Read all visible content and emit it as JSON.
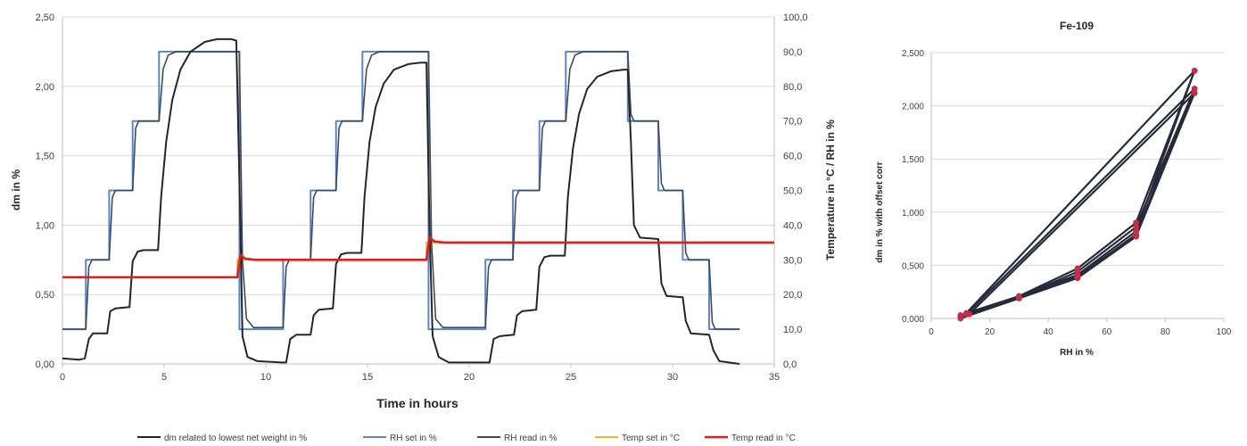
{
  "chart_data": [
    {
      "type": "line",
      "xlabel": "Time in hours",
      "ylabel": "dm in %",
      "y2label": "Temperature in °C / RH in %",
      "xlim": [
        0,
        35
      ],
      "ylim": [
        0,
        2.5
      ],
      "y2lim": [
        0,
        100
      ],
      "xticks": [
        "0",
        "5",
        "10",
        "15",
        "20",
        "25",
        "30",
        "35"
      ],
      "yticks": [
        "0,00",
        "0,50",
        "1,00",
        "1,50",
        "2,00",
        "2,50"
      ],
      "y2ticks": [
        "0,0",
        "10,0",
        "20,0",
        "30,0",
        "40,0",
        "50,0",
        "60,0",
        "70,0",
        "80,0",
        "90,0",
        "100,0"
      ],
      "grid": "horizontal",
      "legend_position": "bottom",
      "series": [
        {
          "name": "dm  related to lowest net weight in   %",
          "axis": "left",
          "color": "#262626",
          "points": [
            [
              0,
              0.04
            ],
            [
              0.8,
              0.03
            ],
            [
              1.1,
              0.04
            ],
            [
              1.3,
              0.18
            ],
            [
              1.5,
              0.22
            ],
            [
              2.2,
              0.22
            ],
            [
              2.35,
              0.38
            ],
            [
              2.6,
              0.4
            ],
            [
              3.3,
              0.41
            ],
            [
              3.45,
              0.74
            ],
            [
              3.7,
              0.81
            ],
            [
              4.0,
              0.82
            ],
            [
              4.7,
              0.82
            ],
            [
              4.85,
              1.2
            ],
            [
              5.1,
              1.6
            ],
            [
              5.4,
              1.9
            ],
            [
              5.8,
              2.12
            ],
            [
              6.3,
              2.25
            ],
            [
              7.0,
              2.32
            ],
            [
              7.6,
              2.34
            ],
            [
              8.3,
              2.34
            ],
            [
              8.55,
              2.33
            ],
            [
              8.75,
              1.0
            ],
            [
              8.85,
              0.2
            ],
            [
              9.1,
              0.05
            ],
            [
              9.6,
              0.02
            ],
            [
              10.8,
              0.01
            ],
            [
              11.0,
              0.01
            ],
            [
              11.2,
              0.18
            ],
            [
              11.5,
              0.21
            ],
            [
              12.2,
              0.21
            ],
            [
              12.35,
              0.35
            ],
            [
              12.6,
              0.39
            ],
            [
              13.3,
              0.4
            ],
            [
              13.45,
              0.72
            ],
            [
              13.7,
              0.79
            ],
            [
              14.0,
              0.8
            ],
            [
              14.7,
              0.8
            ],
            [
              14.85,
              1.2
            ],
            [
              15.1,
              1.6
            ],
            [
              15.4,
              1.85
            ],
            [
              15.8,
              2.02
            ],
            [
              16.3,
              2.12
            ],
            [
              17.0,
              2.16
            ],
            [
              17.6,
              2.17
            ],
            [
              17.9,
              2.17
            ],
            [
              18.05,
              1.0
            ],
            [
              18.2,
              0.2
            ],
            [
              18.5,
              0.05
            ],
            [
              19.0,
              0.01
            ],
            [
              20.8,
              0.01
            ],
            [
              21.0,
              0.01
            ],
            [
              21.2,
              0.18
            ],
            [
              21.5,
              0.2
            ],
            [
              22.2,
              0.21
            ],
            [
              22.35,
              0.35
            ],
            [
              22.6,
              0.38
            ],
            [
              23.3,
              0.39
            ],
            [
              23.45,
              0.7
            ],
            [
              23.7,
              0.77
            ],
            [
              24.0,
              0.78
            ],
            [
              24.7,
              0.78
            ],
            [
              24.85,
              1.2
            ],
            [
              25.1,
              1.55
            ],
            [
              25.4,
              1.8
            ],
            [
              25.8,
              1.98
            ],
            [
              26.3,
              2.07
            ],
            [
              27.0,
              2.11
            ],
            [
              27.6,
              2.12
            ],
            [
              27.8,
              2.12
            ],
            [
              27.95,
              1.6
            ],
            [
              28.1,
              1.0
            ],
            [
              28.4,
              0.91
            ],
            [
              29.3,
              0.9
            ],
            [
              29.45,
              0.58
            ],
            [
              29.7,
              0.49
            ],
            [
              30.5,
              0.48
            ],
            [
              30.65,
              0.31
            ],
            [
              30.9,
              0.22
            ],
            [
              31.8,
              0.21
            ],
            [
              32.0,
              0.1
            ],
            [
              32.3,
              0.02
            ],
            [
              33.3,
              0.0
            ]
          ]
        },
        {
          "name": "RH set in %",
          "axis": "right",
          "color": "#5b87c4",
          "points": [
            [
              0,
              10
            ],
            [
              1.15,
              10
            ],
            [
              1.15,
              30
            ],
            [
              2.3,
              30
            ],
            [
              2.3,
              50
            ],
            [
              3.45,
              50
            ],
            [
              3.45,
              70
            ],
            [
              4.75,
              70
            ],
            [
              4.75,
              90
            ],
            [
              8.7,
              90
            ],
            [
              8.7,
              10
            ],
            [
              10.85,
              10
            ],
            [
              10.85,
              30
            ],
            [
              12.2,
              30
            ],
            [
              12.2,
              50
            ],
            [
              13.45,
              50
            ],
            [
              13.45,
              70
            ],
            [
              14.75,
              70
            ],
            [
              14.75,
              90
            ],
            [
              18.0,
              90
            ],
            [
              18.0,
              10
            ],
            [
              20.8,
              10
            ],
            [
              20.8,
              30
            ],
            [
              22.15,
              30
            ],
            [
              22.15,
              50
            ],
            [
              23.45,
              50
            ],
            [
              23.45,
              70
            ],
            [
              24.75,
              70
            ],
            [
              24.75,
              90
            ],
            [
              27.8,
              90
            ],
            [
              27.8,
              70
            ],
            [
              29.3,
              70
            ],
            [
              29.3,
              50
            ],
            [
              30.5,
              50
            ],
            [
              30.5,
              30
            ],
            [
              31.8,
              30
            ],
            [
              31.8,
              10
            ],
            [
              33.3,
              10
            ]
          ]
        },
        {
          "name": "RH read in %",
          "axis": "right",
          "color": "#404a5a",
          "points": [
            [
              0,
              10
            ],
            [
              1.15,
              10
            ],
            [
              1.3,
              28
            ],
            [
              1.45,
              30
            ],
            [
              2.3,
              30
            ],
            [
              2.45,
              48
            ],
            [
              2.6,
              50
            ],
            [
              3.45,
              50
            ],
            [
              3.6,
              68
            ],
            [
              3.75,
              70
            ],
            [
              4.75,
              70
            ],
            [
              4.95,
              85
            ],
            [
              5.2,
              89
            ],
            [
              5.6,
              90
            ],
            [
              8.7,
              90
            ],
            [
              8.85,
              30
            ],
            [
              9.05,
              13
            ],
            [
              9.4,
              10.5
            ],
            [
              10.85,
              10.5
            ],
            [
              11.0,
              28
            ],
            [
              11.15,
              30
            ],
            [
              12.2,
              30
            ],
            [
              12.35,
              48
            ],
            [
              12.5,
              50
            ],
            [
              13.45,
              50
            ],
            [
              13.6,
              68
            ],
            [
              13.75,
              70
            ],
            [
              14.75,
              70
            ],
            [
              14.95,
              85
            ],
            [
              15.2,
              89
            ],
            [
              15.6,
              90
            ],
            [
              18.0,
              90
            ],
            [
              18.15,
              35
            ],
            [
              18.35,
              13
            ],
            [
              18.7,
              10.5
            ],
            [
              20.8,
              10.5
            ],
            [
              20.95,
              28
            ],
            [
              21.1,
              30
            ],
            [
              22.15,
              30
            ],
            [
              22.3,
              48
            ],
            [
              22.45,
              50
            ],
            [
              23.45,
              50
            ],
            [
              23.6,
              68
            ],
            [
              23.75,
              70
            ],
            [
              24.75,
              70
            ],
            [
              24.95,
              85
            ],
            [
              25.2,
              89
            ],
            [
              25.6,
              90
            ],
            [
              27.8,
              90
            ],
            [
              27.95,
              72
            ],
            [
              28.1,
              70
            ],
            [
              29.3,
              70
            ],
            [
              29.45,
              52
            ],
            [
              29.6,
              50
            ],
            [
              30.5,
              50
            ],
            [
              30.65,
              32
            ],
            [
              30.8,
              30
            ],
            [
              31.8,
              30
            ],
            [
              31.95,
              12
            ],
            [
              32.1,
              10
            ],
            [
              33.3,
              10
            ]
          ]
        },
        {
          "name": "Temp set in °C",
          "axis": "right",
          "color": "#f2b52a",
          "points": [
            [
              0,
              25
            ],
            [
              8.6,
              25
            ],
            [
              8.6,
              30
            ],
            [
              17.9,
              30
            ],
            [
              17.9,
              35
            ],
            [
              35,
              35
            ]
          ]
        },
        {
          "name": "Temp read in °C",
          "axis": "right",
          "color": "#e02020",
          "points": [
            [
              0,
              25
            ],
            [
              8.6,
              25
            ],
            [
              8.75,
              31.5
            ],
            [
              9.0,
              30.3
            ],
            [
              9.5,
              30
            ],
            [
              17.9,
              30
            ],
            [
              18.05,
              36.5
            ],
            [
              18.3,
              35.3
            ],
            [
              18.8,
              35
            ],
            [
              35,
              35
            ]
          ]
        }
      ]
    },
    {
      "type": "scatter",
      "title": "Fe-109",
      "xlabel": "RH in %",
      "ylabel": "dm in % with offset corr",
      "xlim": [
        0,
        100
      ],
      "ylim": [
        0,
        2.5
      ],
      "xticks": [
        "0",
        "20",
        "40",
        "60",
        "80",
        "100"
      ],
      "yticks": [
        "0,000",
        "0,500",
        "1,000",
        "1,500",
        "2,000",
        "2,500"
      ],
      "grid": "horizontal",
      "line_color": "#262a3a",
      "marker_color": "#c0304a",
      "loops": [
        [
          [
            10,
            0.03
          ],
          [
            30,
            0.21
          ],
          [
            50,
            0.41
          ],
          [
            70,
            0.82
          ],
          [
            90,
            2.33
          ],
          [
            70,
            0.9
          ],
          [
            50,
            0.47
          ],
          [
            30,
            0.21
          ],
          [
            12,
            0.05
          ],
          [
            90,
            2.33
          ]
        ],
        [
          [
            10,
            0.01
          ],
          [
            30,
            0.19
          ],
          [
            50,
            0.39
          ],
          [
            70,
            0.79
          ],
          [
            90,
            2.16
          ],
          [
            70,
            0.86
          ],
          [
            50,
            0.44
          ],
          [
            30,
            0.2
          ],
          [
            12,
            0.04
          ],
          [
            90,
            2.16
          ]
        ],
        [
          [
            10,
            0.0
          ],
          [
            30,
            0.19
          ],
          [
            50,
            0.38
          ],
          [
            70,
            0.77
          ],
          [
            90,
            2.12
          ],
          [
            70,
            0.78
          ],
          [
            50,
            0.4
          ],
          [
            30,
            0.2
          ],
          [
            13,
            0.04
          ],
          [
            90,
            2.12
          ]
        ]
      ]
    }
  ]
}
